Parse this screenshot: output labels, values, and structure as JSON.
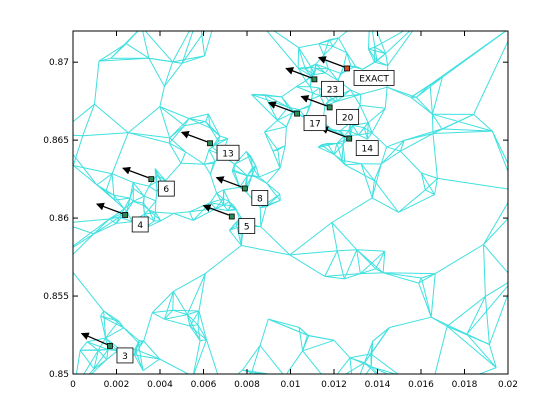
{
  "chart_data": {
    "type": "scatter",
    "title": "",
    "xlabel": "",
    "ylabel": "",
    "xlim": [
      0,
      0.02
    ],
    "ylim": [
      0.85,
      0.872
    ],
    "x_ticks": [
      "0",
      "0.002",
      "0.004",
      "0.006",
      "0.008",
      "0.01",
      "0.012",
      "0.014",
      "0.016",
      "0.018",
      "0.02"
    ],
    "x_tick_values": [
      0,
      0.002,
      0.004,
      0.006,
      0.008,
      0.01,
      0.012,
      0.014,
      0.016,
      0.018,
      0.02
    ],
    "y_ticks": [
      "0.85",
      "0.855",
      "0.86",
      "0.865",
      "0.87"
    ],
    "y_tick_values": [
      0.85,
      0.855,
      0.86,
      0.865,
      0.87
    ],
    "grid": false,
    "mesh_color": "#40e0e0",
    "marker_color": "#2e8b57",
    "exact_color": "#d9482b",
    "arrow_color": "#000000",
    "points": [
      {
        "label": "3",
        "x": 0.0017,
        "y": 0.8518,
        "dx": -0.0013,
        "dy": 0.0008
      },
      {
        "label": "4",
        "x": 0.0024,
        "y": 0.8602,
        "dx": -0.0013,
        "dy": 0.0007
      },
      {
        "label": "5",
        "x": 0.0073,
        "y": 0.8601,
        "dx": -0.0013,
        "dy": 0.0007
      },
      {
        "label": "6",
        "x": 0.0036,
        "y": 0.8625,
        "dx": -0.0013,
        "dy": 0.0007
      },
      {
        "label": "8",
        "x": 0.0079,
        "y": 0.8619,
        "dx": -0.0013,
        "dy": 0.0007
      },
      {
        "label": "13",
        "x": 0.0063,
        "y": 0.8648,
        "dx": -0.0013,
        "dy": 0.0007
      },
      {
        "label": "14",
        "x": 0.0127,
        "y": 0.8651,
        "dx": -0.0013,
        "dy": 0.0007
      },
      {
        "label": "17",
        "x": 0.0103,
        "y": 0.8667,
        "dx": -0.0013,
        "dy": 0.0007
      },
      {
        "label": "20",
        "x": 0.0118,
        "y": 0.8671,
        "dx": -0.0013,
        "dy": 0.0007
      },
      {
        "label": "23",
        "x": 0.0111,
        "y": 0.8689,
        "dx": -0.0013,
        "dy": 0.0007
      },
      {
        "label": "EXACT",
        "x": 0.0126,
        "y": 0.8696,
        "dx": -0.0013,
        "dy": 0.0007,
        "exact": true
      }
    ]
  }
}
